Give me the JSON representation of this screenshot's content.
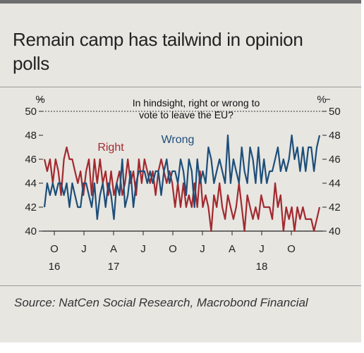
{
  "title": "Remain camp has tailwind in opinion polls",
  "source": "Source: NatCen Social Research, Macrobond Financial",
  "chart_data": {
    "type": "line",
    "annotation": "In hindsight, right or wrong to vote to leave the EU?",
    "unit_label": "%",
    "ylim": [
      40,
      50
    ],
    "yticks": [
      40,
      42,
      44,
      46,
      48,
      50
    ],
    "reference_line": 50,
    "x_start": "2016-09",
    "x_end": "2019-01",
    "month_ticks": [
      "O",
      "J",
      "A",
      "J",
      "O",
      "J",
      "A",
      "J",
      "O"
    ],
    "year_labels": [
      "16",
      "17",
      "18"
    ],
    "series": [
      {
        "name": "Right",
        "color": "#a3292f",
        "values": [
          46,
          45,
          46,
          44,
          46,
          45,
          43,
          46,
          47,
          46,
          46,
          45,
          44,
          45,
          43,
          45,
          46,
          43,
          46,
          44,
          46,
          44,
          45,
          43,
          45,
          43,
          44,
          45,
          43,
          44,
          46,
          44,
          45,
          43,
          46,
          44,
          46,
          45,
          44,
          45,
          43,
          45,
          46,
          45,
          44,
          45,
          44,
          42,
          44,
          42,
          44,
          42,
          43,
          42,
          44,
          42,
          45,
          42,
          43,
          42,
          40,
          43,
          42,
          44,
          42,
          41,
          43,
          42,
          41,
          42,
          44,
          42,
          40,
          43,
          42,
          41,
          42,
          41,
          43,
          42,
          42,
          42,
          41,
          44,
          42,
          43,
          40,
          42,
          41,
          42,
          40,
          42,
          41,
          42,
          41,
          41,
          41,
          40,
          41,
          42
        ]
      },
      {
        "name": "Wrong",
        "color": "#1e4e79",
        "values": [
          42,
          44,
          43,
          44,
          43,
          44,
          44,
          43,
          44,
          42,
          44,
          43,
          42,
          42,
          44,
          44,
          43,
          42,
          44,
          41,
          43,
          44,
          42,
          44,
          43,
          41,
          44,
          43,
          46,
          42,
          43,
          45,
          42,
          44,
          45,
          45,
          45,
          44,
          45,
          44,
          45,
          45,
          43,
          45,
          46,
          44,
          45,
          45,
          44,
          46,
          45,
          43,
          46,
          45,
          42,
          46,
          44,
          45,
          44,
          47,
          46,
          44,
          45,
          46,
          45,
          44,
          48,
          44,
          46,
          45,
          44,
          47,
          45,
          44,
          47,
          46,
          44,
          47,
          44,
          46,
          44,
          45,
          45,
          46,
          47,
          45,
          46,
          45,
          46,
          48,
          46,
          47,
          45,
          47,
          45,
          47,
          47,
          45,
          47,
          48
        ]
      }
    ]
  }
}
